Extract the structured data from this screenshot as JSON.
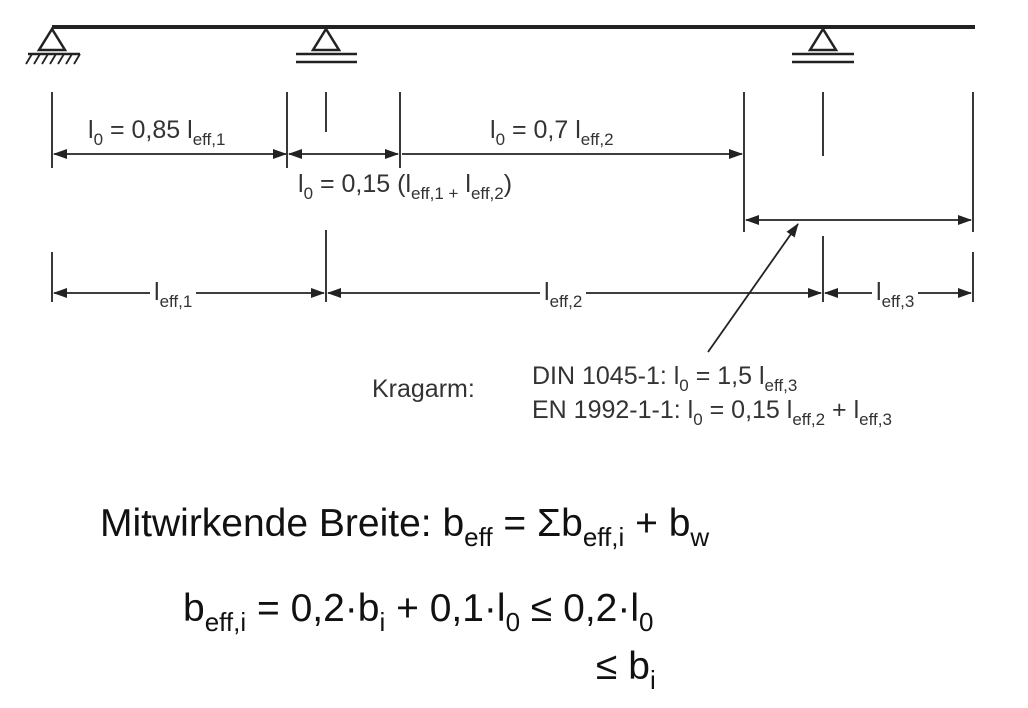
{
  "diagram": {
    "l0_span1": {
      "pre": "l",
      "s1": "0",
      "mid": " = 0,85 l",
      "s2": "eff,1"
    },
    "l0_span2": {
      "pre": "l",
      "s1": "0",
      "mid": " = 0,7 l",
      "s2": "eff,2"
    },
    "l0_support": {
      "pre": "l",
      "s1": "0",
      "mid": " = 0,15 (l",
      "s2": "eff,1 +",
      "mid2": " l",
      "s3": "eff,2",
      "post": ")"
    },
    "leff1": {
      "pre": "l",
      "sub": "eff,1"
    },
    "leff2": {
      "pre": "l",
      "sub": "eff,2"
    },
    "leff3": {
      "pre": "l",
      "sub": "eff,3"
    },
    "kragarm_label": "Kragarm:",
    "din": {
      "pre": "DIN 1045-1:  l",
      "s1": "0",
      "mid": " = 1,5 l",
      "s2": "eff,3"
    },
    "en": {
      "pre": "EN 1992-1-1: l",
      "s1": "0",
      "mid": " = 0,15 l",
      "s2": "eff,2",
      "mid2": " + l",
      "s3": "eff,3"
    }
  },
  "formulas": {
    "line1": {
      "pre": "Mitwirkende Breite: b",
      "s1": "eff",
      "mid": " = Σb",
      "s2": "eff,i",
      "mid2": " + b",
      "s3": "w"
    },
    "line2": {
      "pre": "b",
      "s1": "eff,i",
      "mid": " = 0,2·b",
      "s2": "i",
      "mid2": " + 0,1·l",
      "s3": "0",
      "mid3": "  ≤ 0,2·l",
      "s4": "0"
    },
    "line3": {
      "pre": "≤ b",
      "s1": "i"
    }
  }
}
